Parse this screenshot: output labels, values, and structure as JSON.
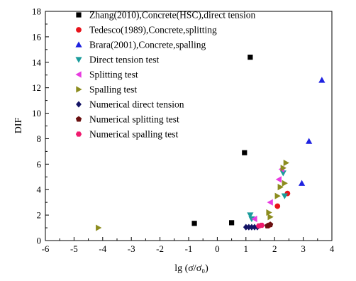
{
  "chart_data": {
    "type": "scatter",
    "title": "",
    "xlabel": "lg (σ̇/σ̇₀)",
    "ylabel": "DIF",
    "xlim": [
      -6,
      4
    ],
    "ylim": [
      0,
      18
    ],
    "xticks": [
      "-6",
      "-5",
      "-4",
      "-3",
      "-2",
      "-1",
      "0",
      "1",
      "2",
      "3",
      "4"
    ],
    "yticks": [
      "0",
      "2",
      "4",
      "6",
      "8",
      "10",
      "12",
      "14",
      "16",
      "18"
    ],
    "grid": false,
    "legend_position": "top-left",
    "series": [
      {
        "name": "Zhang(2010),Concrete(HSC),direct tension",
        "marker": "square",
        "color": "#000000",
        "points": [
          [
            -0.8,
            1.35
          ],
          [
            0.5,
            1.4
          ],
          [
            0.95,
            6.9
          ],
          [
            1.15,
            14.4
          ]
        ]
      },
      {
        "name": "Tedesco(1989),Concrete,splitting",
        "marker": "circle",
        "color": "#e8131b",
        "points": [
          [
            1.8,
            1.2
          ],
          [
            2.1,
            2.7
          ],
          [
            2.45,
            3.7
          ]
        ]
      },
      {
        "name": "Brara(2001),Concrete,spalling",
        "marker": "triangle-up",
        "color": "#1e22e0",
        "points": [
          [
            2.95,
            4.5
          ],
          [
            3.2,
            7.8
          ],
          [
            3.65,
            12.6
          ]
        ]
      },
      {
        "name": "Direct tension test",
        "marker": "triangle-down",
        "color": "#1a9c9c",
        "points": [
          [
            1.15,
            2.0
          ],
          [
            1.2,
            1.7
          ],
          [
            2.3,
            5.3
          ],
          [
            2.35,
            3.5
          ]
        ]
      },
      {
        "name": "Splitting test",
        "marker": "triangle-left",
        "color": "#e83ce0",
        "points": [
          [
            1.3,
            1.7
          ],
          [
            1.85,
            3.0
          ],
          [
            2.15,
            4.8
          ],
          [
            2.25,
            5.6
          ]
        ]
      },
      {
        "name": "Spalling test",
        "marker": "triangle-right",
        "color": "#8c8c1e",
        "points": [
          [
            -4.15,
            1.0
          ],
          [
            1.8,
            2.2
          ],
          [
            1.85,
            1.85
          ],
          [
            2.1,
            3.5
          ],
          [
            2.2,
            4.2
          ],
          [
            2.3,
            5.7
          ],
          [
            2.35,
            4.5
          ],
          [
            2.4,
            6.1
          ]
        ]
      },
      {
        "name": "Numerical direct tension",
        "marker": "diamond",
        "color": "#141465",
        "points": [
          [
            1.0,
            1.05
          ],
          [
            1.1,
            1.05
          ],
          [
            1.2,
            1.05
          ],
          [
            1.3,
            1.05
          ],
          [
            1.4,
            1.05
          ]
        ]
      },
      {
        "name": "Numerical splitting test",
        "marker": "pentagon",
        "color": "#6a1010",
        "points": [
          [
            1.75,
            1.15
          ],
          [
            1.85,
            1.25
          ]
        ]
      },
      {
        "name": "Numerical spalling test",
        "marker": "hexagon",
        "color": "#f01a6e",
        "points": [
          [
            1.45,
            1.15
          ],
          [
            1.55,
            1.2
          ]
        ]
      }
    ]
  }
}
